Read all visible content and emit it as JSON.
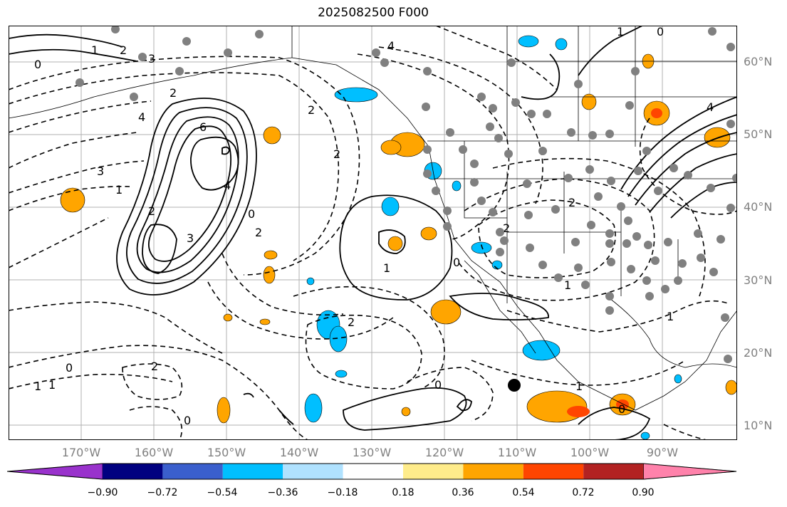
{
  "title": "2025082500 F000",
  "lat_labels": [
    "60°N",
    "50°N",
    "40°N",
    "30°N",
    "20°N",
    "10°N"
  ],
  "lon_labels": [
    "170°W",
    "160°W",
    "150°W",
    "140°W",
    "130°W",
    "120°W",
    "110°W",
    "100°W",
    "90°W"
  ],
  "contour_labels": [
    "0",
    "1",
    "2",
    "3",
    "4",
    "4",
    "3",
    "2",
    "6",
    "4",
    "3",
    "2",
    "1",
    "0",
    "2",
    "2",
    "1",
    "0",
    "2",
    "1",
    "2",
    "2",
    "1",
    "0",
    "0",
    "2",
    "1",
    "0",
    "1",
    "1",
    "0",
    "4",
    "2",
    "1",
    "0"
  ],
  "colorbar": {
    "ticks": [
      "−0.90",
      "−0.72",
      "−0.54",
      "−0.36",
      "−0.18",
      "0.18",
      "0.36",
      "0.54",
      "0.72",
      "0.90"
    ],
    "colors": [
      "#9932cc",
      "#000080",
      "#3a5fcd",
      "#00bfff",
      "#b0e2ff",
      "#ffffff",
      "#ffec8b",
      "#ffa500",
      "#ff4500",
      "#b22222",
      "#ff82ab"
    ]
  },
  "colors": {
    "contour": "#000000",
    "station": "#808080",
    "land_outline": "#000000",
    "grid": "#b0b0b0"
  }
}
